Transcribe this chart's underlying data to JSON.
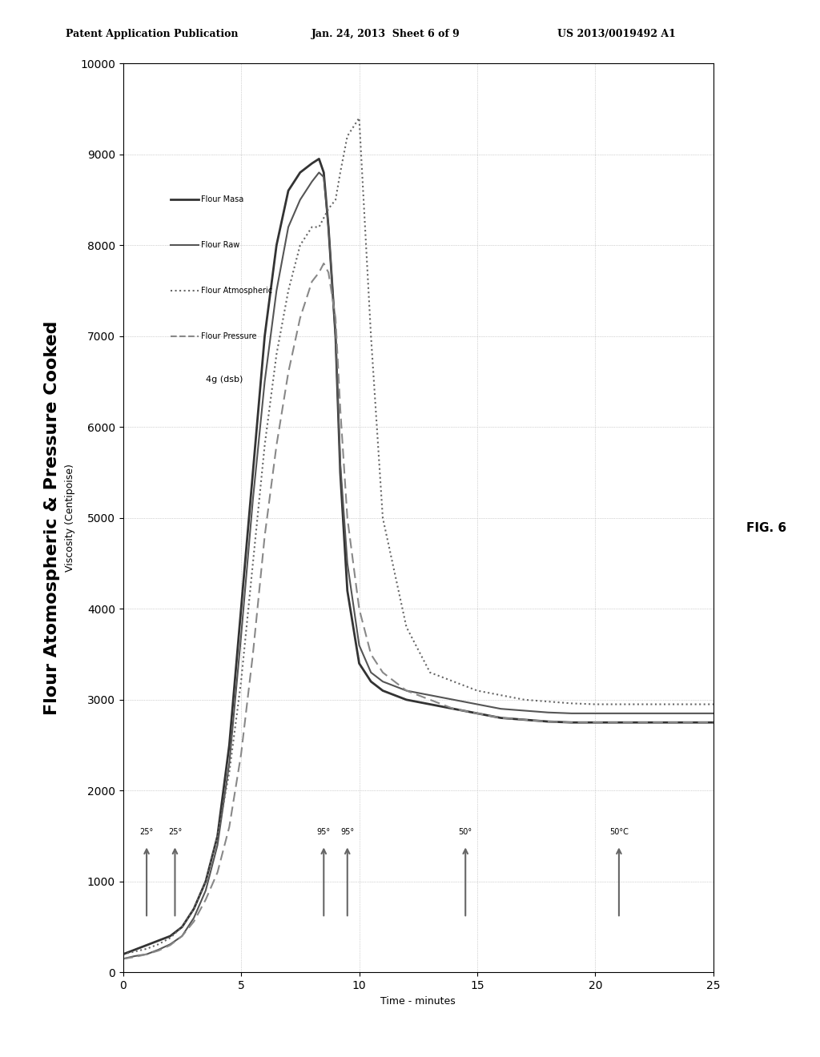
{
  "title": "Flour Atomospheric & Pressure Cooked",
  "xlabel": "Time - minutes",
  "ylabel": "Viscosity (Centipoise)",
  "xlim": [
    0,
    25
  ],
  "ylim": [
    0,
    10000
  ],
  "xticks": [
    0.0,
    5.0,
    10.0,
    15.0,
    20.0,
    25.0
  ],
  "yticks": [
    0,
    1000,
    2000,
    3000,
    4000,
    5000,
    6000,
    7000,
    8000,
    9000,
    10000
  ],
  "header_left": "Patent Application Publication",
  "header_center": "Jan. 24, 2013  Sheet 6 of 9",
  "header_right": "US 2013/0019492 A1",
  "fig_label": "FIG. 6",
  "sample_label": "4g (dsb)",
  "legend_entries": [
    "Flour Masa",
    "Flour Raw",
    "Flour Atmospheric",
    "Flour Pressure"
  ],
  "temp_annotations": [
    {
      "x": 1.0,
      "label": "25°"
    },
    {
      "x": 2.2,
      "label": "25°"
    },
    {
      "x": 8.5,
      "label": "95°"
    },
    {
      "x": 9.5,
      "label": "95°"
    },
    {
      "x": 14.5,
      "label": "50°"
    },
    {
      "x": 21.0,
      "label": "50°C"
    }
  ],
  "flour_masa_x": [
    0.0,
    0.5,
    1.0,
    1.5,
    2.0,
    2.5,
    3.0,
    3.5,
    4.0,
    4.5,
    5.0,
    5.5,
    6.0,
    6.5,
    7.0,
    7.5,
    8.0,
    8.3,
    8.5,
    8.7,
    9.0,
    9.2,
    9.5,
    10.0,
    10.5,
    11.0,
    12.0,
    13.0,
    14.0,
    15.0,
    16.0,
    17.0,
    18.0,
    19.0,
    20.0,
    21.0,
    22.0,
    23.0,
    24.0,
    25.0
  ],
  "flour_masa_y": [
    200,
    250,
    300,
    350,
    400,
    500,
    700,
    1000,
    1500,
    2500,
    4000,
    5500,
    7000,
    8000,
    8600,
    8800,
    8900,
    8950,
    8800,
    8200,
    7000,
    5500,
    4200,
    3400,
    3200,
    3100,
    3000,
    2950,
    2900,
    2850,
    2800,
    2780,
    2760,
    2750,
    2750,
    2750,
    2750,
    2750,
    2750,
    2750
  ],
  "flour_raw_x": [
    0.0,
    0.5,
    1.0,
    1.5,
    2.0,
    2.5,
    3.0,
    3.5,
    4.0,
    4.5,
    5.0,
    5.5,
    6.0,
    6.5,
    7.0,
    7.5,
    8.0,
    8.3,
    8.5,
    8.7,
    9.0,
    9.2,
    9.5,
    10.0,
    10.5,
    11.0,
    12.0,
    13.0,
    14.0,
    15.0,
    16.0,
    17.0,
    18.0,
    19.0,
    20.0,
    21.0,
    22.0,
    23.0,
    24.0,
    25.0
  ],
  "flour_raw_y": [
    150,
    180,
    200,
    250,
    310,
    400,
    600,
    900,
    1400,
    2300,
    3700,
    5200,
    6500,
    7500,
    8200,
    8500,
    8700,
    8800,
    8750,
    8200,
    7000,
    5600,
    4500,
    3600,
    3300,
    3200,
    3100,
    3050,
    3000,
    2950,
    2900,
    2880,
    2860,
    2850,
    2850,
    2850,
    2850,
    2850,
    2850,
    2850
  ],
  "flour_atm_x": [
    0.0,
    0.5,
    1.0,
    1.5,
    2.0,
    2.5,
    3.0,
    3.5,
    4.0,
    4.5,
    5.0,
    5.5,
    6.0,
    6.5,
    7.0,
    7.5,
    8.0,
    8.3,
    8.5,
    8.7,
    9.0,
    9.2,
    9.5,
    10.0,
    10.5,
    11.0,
    12.0,
    13.0,
    14.0,
    15.0,
    16.0,
    17.0,
    18.0,
    19.0,
    20.0,
    21.0,
    22.0,
    23.0,
    24.0,
    25.0
  ],
  "flour_atm_y": [
    200,
    230,
    260,
    310,
    380,
    500,
    700,
    1000,
    1500,
    2200,
    3200,
    4500,
    5800,
    6800,
    7500,
    8000,
    8200,
    8200,
    8300,
    8400,
    8500,
    8800,
    9200,
    9400,
    7000,
    5000,
    3800,
    3300,
    3200,
    3100,
    3050,
    3000,
    2980,
    2960,
    2950,
    2950,
    2950,
    2950,
    2950,
    2950
  ],
  "flour_pres_x": [
    0.0,
    0.5,
    1.0,
    1.5,
    2.0,
    2.5,
    3.0,
    3.5,
    4.0,
    4.5,
    5.0,
    5.5,
    6.0,
    6.5,
    7.0,
    7.5,
    8.0,
    8.3,
    8.5,
    8.7,
    9.0,
    9.2,
    9.5,
    10.0,
    10.5,
    11.0,
    12.0,
    13.0,
    14.0,
    15.0,
    16.0,
    17.0,
    18.0,
    19.0,
    20.0,
    21.0,
    22.0,
    23.0,
    24.0,
    25.0
  ],
  "flour_pres_y": [
    150,
    170,
    200,
    240,
    300,
    400,
    560,
    800,
    1100,
    1600,
    2400,
    3500,
    4800,
    5800,
    6600,
    7200,
    7600,
    7700,
    7800,
    7700,
    7200,
    6200,
    5000,
    4000,
    3500,
    3300,
    3100,
    3000,
    2900,
    2850,
    2800,
    2780,
    2760,
    2750,
    2750,
    2750,
    2750,
    2750,
    2750,
    2750
  ],
  "background_color": "#ffffff",
  "line_color_masa": "#555555",
  "line_color_raw": "#333333",
  "line_color_atm": "#777777",
  "line_color_pres": "#888888"
}
